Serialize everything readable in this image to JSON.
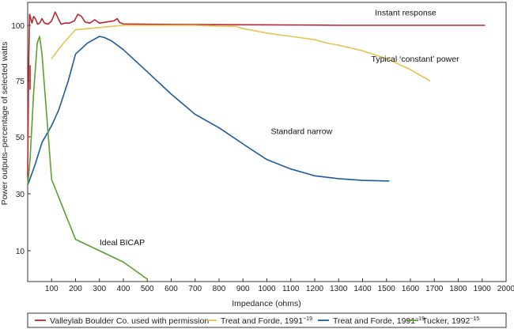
{
  "chart_data": {
    "type": "line",
    "title": "",
    "xlabel": "Impedance (ohms)",
    "ylabel": "Power outputs–percentage of selected watts",
    "xlim": [
      0,
      2000
    ],
    "ylim": [
      0,
      110
    ],
    "xticks": [
      100,
      200,
      300,
      400,
      500,
      600,
      700,
      800,
      900,
      1000,
      1100,
      1200,
      1300,
      1400,
      1500,
      1600,
      1700,
      1800,
      1900,
      2000
    ],
    "yticks": [
      10,
      30,
      50,
      75,
      100
    ],
    "grid": false,
    "series": [
      {
        "name": "Instant response",
        "color": "#b5282e",
        "legend": "Valleylab Boulder Co. used with permission",
        "legend_sup": "",
        "x": [
          0,
          4,
          8,
          12,
          18,
          25,
          32,
          42,
          50,
          60,
          70,
          85,
          100,
          115,
          128,
          140,
          155,
          175,
          195,
          210,
          225,
          240,
          260,
          280,
          300,
          330,
          360,
          375,
          380,
          385,
          400,
          600,
          800,
          1000,
          1200,
          1300,
          1500,
          1700,
          1910
        ],
        "y": [
          36,
          80,
          105,
          103.5,
          101,
          104,
          103,
          100.5,
          101,
          103,
          101,
          100.5,
          102,
          106,
          103,
          100.5,
          101,
          101,
          102,
          105,
          104,
          101.5,
          101,
          102.5,
          101,
          101.5,
          102,
          103,
          102,
          101.2,
          100.6,
          100.4,
          100.3,
          100.2,
          100.1,
          100,
          100,
          100,
          100
        ]
      },
      {
        "name": "Typical ‘constant’ power",
        "color": "#e3c44e",
        "legend": "Treat and Forde, 1991",
        "legend_sup": "−19",
        "x": [
          100,
          150,
          200,
          300,
          400,
          500,
          600,
          700,
          800,
          870,
          900,
          1000,
          1100,
          1200,
          1250,
          1300,
          1400,
          1500,
          1600,
          1680
        ],
        "y": [
          85,
          92,
          98,
          99,
          100,
          100,
          100,
          100,
          99.6,
          99.5,
          98.5,
          96.5,
          95,
          93.5,
          92,
          91,
          88.5,
          85,
          80,
          75
        ]
      },
      {
        "name": "Standard narrow",
        "color": "#1f5b9b",
        "legend": "Treat and Forde, 1991",
        "legend_sup": "−19",
        "x": [
          0,
          30,
          60,
          100,
          130,
          170,
          200,
          250,
          300,
          320,
          350,
          400,
          500,
          600,
          700,
          800,
          900,
          1000,
          1100,
          1200,
          1300,
          1400,
          1500,
          1510
        ],
        "y": [
          33,
          40,
          48,
          55,
          62,
          75,
          87,
          92,
          95,
          94.5,
          93,
          89,
          79,
          69,
          60,
          54,
          47.5,
          42,
          38.7,
          36.3,
          35.3,
          34.7,
          34.5,
          34.5
        ]
      },
      {
        "name": "Ideal BICAP",
        "color": "#5e9e30",
        "legend": "Tucker, 1992",
        "legend_sup": "−15",
        "x": [
          0,
          10,
          25,
          40,
          50,
          60,
          100,
          200,
          300,
          400,
          500
        ],
        "y": [
          33,
          42,
          70,
          92,
          95,
          87,
          35,
          14,
          10,
          6,
          0
        ]
      }
    ],
    "annotations": [
      {
        "text": "Instant response",
        "x": 1580,
        "y": 104.5,
        "series": 0
      },
      {
        "text": "Typical ‘constant’ power",
        "x": 1620,
        "y": 83.5,
        "series": 1
      },
      {
        "text": "Standard narrow",
        "x": 1145,
        "y": 51.2,
        "series": 2
      },
      {
        "text": "Ideal BICAP",
        "x": 395,
        "y": 12,
        "series": 3
      }
    ]
  }
}
